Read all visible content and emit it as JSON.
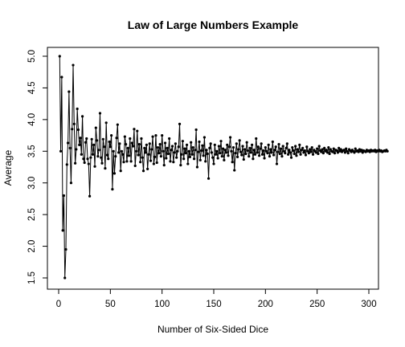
{
  "chart_data": {
    "type": "line",
    "title": "Law of Large Numbers Example",
    "xlabel": "Number of Six-Sided Dice",
    "ylabel": "Average",
    "xlim": [
      0,
      300
    ],
    "ylim": [
      1.45,
      5.05
    ],
    "x_ticks": [
      0,
      50,
      100,
      150,
      200,
      250,
      300
    ],
    "y_ticks": [
      1.5,
      2.0,
      2.5,
      3.0,
      3.5,
      4.0,
      4.5,
      5.0
    ],
    "x_tick_labels": [
      "0",
      "50",
      "100",
      "150",
      "200",
      "250",
      "300"
    ],
    "y_tick_labels": [
      "1.5",
      "2.0",
      "2.5",
      "3.0",
      "3.5",
      "4.0",
      "4.5",
      "5.0"
    ],
    "grid": false,
    "legend": "none",
    "series": [
      {
        "x_start": 1,
        "x_step": 1,
        "values": [
          5.0,
          3.5,
          4.67,
          2.25,
          2.8,
          1.5,
          1.95,
          3.29,
          3.63,
          4.44,
          3.55,
          3.0,
          3.85,
          4.86,
          3.93,
          3.31,
          3.53,
          4.17,
          3.84,
          3.6,
          3.71,
          3.45,
          4.05,
          3.38,
          3.32,
          3.64,
          3.7,
          3.38,
          3.3,
          2.79,
          3.4,
          3.69,
          3.45,
          3.6,
          3.26,
          3.87,
          3.67,
          3.42,
          3.52,
          4.1,
          3.4,
          3.31,
          3.69,
          3.57,
          3.23,
          3.95,
          3.44,
          3.38,
          3.65,
          3.57,
          3.75,
          2.9,
          3.5,
          3.15,
          3.42,
          3.71,
          3.92,
          3.48,
          3.62,
          3.19,
          3.5,
          3.45,
          3.33,
          3.73,
          3.61,
          3.34,
          3.55,
          3.43,
          3.7,
          3.34,
          3.63,
          3.58,
          3.85,
          3.27,
          3.5,
          3.82,
          3.44,
          3.61,
          3.33,
          3.7,
          3.4,
          3.19,
          3.55,
          3.48,
          3.6,
          3.22,
          3.45,
          3.62,
          3.35,
          3.53,
          3.73,
          3.3,
          3.41,
          3.75,
          3.32,
          3.56,
          3.47,
          3.61,
          3.42,
          3.75,
          3.5,
          3.28,
          3.63,
          3.39,
          3.55,
          3.46,
          3.7,
          3.34,
          3.52,
          3.58,
          3.33,
          3.48,
          3.62,
          3.4,
          3.5,
          3.57,
          3.93,
          3.28,
          3.45,
          3.66,
          3.38,
          3.54,
          3.47,
          3.6,
          3.3,
          3.5,
          3.41,
          3.64,
          3.45,
          3.56,
          3.38,
          3.52,
          3.84,
          3.25,
          3.49,
          3.65,
          3.36,
          3.51,
          3.59,
          3.43,
          3.72,
          3.34,
          3.52,
          3.46,
          3.07,
          3.55,
          3.62,
          3.48,
          3.4,
          3.3,
          3.6,
          3.45,
          3.5,
          3.39,
          3.58,
          3.47,
          3.66,
          3.42,
          3.54,
          3.36,
          3.52,
          3.48,
          3.6,
          3.43,
          3.57,
          3.72,
          3.5,
          3.33,
          3.56,
          3.2,
          3.47,
          3.62,
          3.41,
          3.53,
          3.67,
          3.49,
          3.44,
          3.58,
          3.37,
          3.53,
          3.46,
          3.64,
          3.51,
          3.42,
          3.55,
          3.48,
          3.6,
          3.38,
          3.52,
          3.45,
          3.7,
          3.48,
          3.57,
          3.43,
          3.54,
          3.62,
          3.45,
          3.51,
          3.39,
          3.56,
          3.5,
          3.47,
          3.6,
          3.42,
          3.53,
          3.48,
          3.65,
          3.44,
          3.52,
          3.57,
          3.3,
          3.49,
          3.61,
          3.46,
          3.54,
          3.42,
          3.58,
          3.5,
          3.47,
          3.55,
          3.62,
          3.45,
          3.52,
          3.48,
          3.4,
          3.56,
          3.51,
          3.46,
          3.58,
          3.43,
          3.53,
          3.49,
          3.6,
          3.45,
          3.52,
          3.55,
          3.48,
          3.51,
          3.44,
          3.57,
          3.5,
          3.47,
          3.53,
          3.49,
          3.56,
          3.45,
          3.52,
          3.5,
          3.48,
          3.54,
          3.46,
          3.58,
          3.51,
          3.49,
          3.53,
          3.47,
          3.55,
          3.5,
          3.52,
          3.48,
          3.56,
          3.46,
          3.53,
          3.5,
          3.49,
          3.54,
          3.47,
          3.52,
          3.51,
          3.48,
          3.55,
          3.5,
          3.53,
          3.49,
          3.51,
          3.52,
          3.48,
          3.54,
          3.5,
          3.47,
          3.53,
          3.51,
          3.49,
          3.52,
          3.5,
          3.48,
          3.54,
          3.5,
          3.51,
          3.49,
          3.53,
          3.5,
          3.52,
          3.48,
          3.51,
          3.5,
          3.49,
          3.52,
          3.5,
          3.51,
          3.49,
          3.52,
          3.5,
          3.51,
          3.5,
          3.52,
          3.49,
          3.51,
          3.5,
          3.52,
          3.5,
          3.51,
          3.49,
          3.5,
          3.51,
          3.5,
          3.52,
          3.5
        ]
      }
    ]
  }
}
